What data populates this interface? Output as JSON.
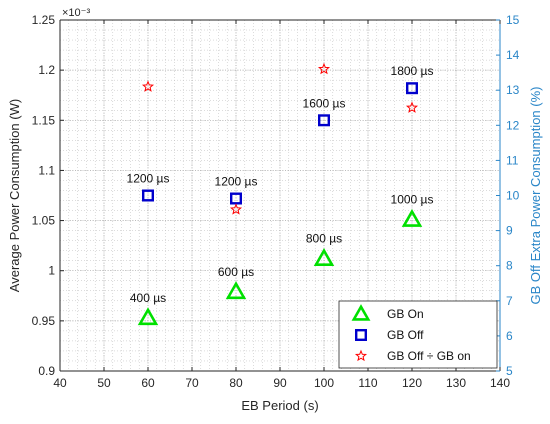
{
  "chart_data": {
    "type": "scatter",
    "xlabel": "EB Period (s)",
    "ylabel": "Average Power Consumption (W)",
    "y2label": "GB Off Extra Power Consumption (%)",
    "xlim": [
      40,
      140
    ],
    "ylim": [
      0.9,
      1.25
    ],
    "y2lim": [
      5,
      15
    ],
    "xticks": [
      "40",
      "50",
      "60",
      "70",
      "80",
      "90",
      "100",
      "110",
      "120",
      "130",
      "140"
    ],
    "yticks": [
      "0.9",
      "0.95",
      "1",
      "1.05",
      "1.1",
      "1.15",
      "1.2",
      "1.25"
    ],
    "y2ticks": [
      "5",
      "6",
      "7",
      "8",
      "9",
      "10",
      "11",
      "12",
      "13",
      "14",
      "15"
    ],
    "y_exponent": "×10⁻³",
    "grid": true,
    "legend_position": "bottom-right",
    "colors": {
      "gb_on": "#00e000",
      "gb_off": "#0000cc",
      "ratio": "#ff0000",
      "right_axis": "#2a86c8"
    },
    "series": [
      {
        "name": "GB On",
        "marker": "triangle",
        "axis": "left",
        "x": [
          60,
          80,
          100,
          120
        ],
        "y": [
          0.953,
          0.979,
          1.012,
          1.051
        ],
        "labels": [
          "400 µs",
          "600 µs",
          "800 µs",
          "1000 µs"
        ]
      },
      {
        "name": "GB Off",
        "marker": "square",
        "axis": "left",
        "x": [
          60,
          80,
          100,
          120
        ],
        "y": [
          1.075,
          1.072,
          1.15,
          1.182
        ],
        "labels": [
          "1200 µs",
          "1200 µs",
          "1600 µs",
          "1800 µs"
        ]
      },
      {
        "name": "GB Off ÷ GB on",
        "marker": "star",
        "axis": "right",
        "x": [
          60,
          80,
          100,
          120
        ],
        "y": [
          13.1,
          9.6,
          13.6,
          12.5
        ],
        "labels": [
          "",
          "",
          "",
          ""
        ]
      }
    ]
  }
}
